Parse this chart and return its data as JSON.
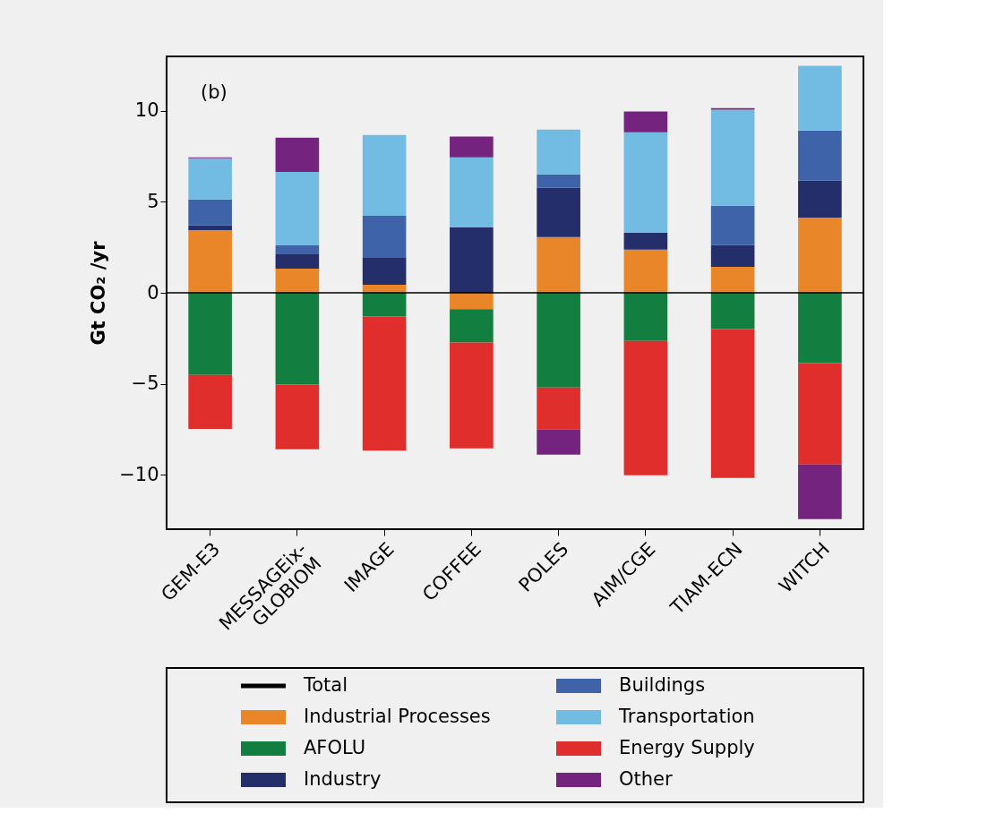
{
  "chart_data": {
    "type": "bar",
    "stacked": true,
    "ylabel": "Gt CO₂ /yr",
    "categories": [
      "GEM-E3",
      "MESSAGEix-GLOBIOM",
      "IMAGE",
      "COFFEE",
      "POLES",
      "AIM/CGE",
      "TIAM-ECN",
      "WITCH"
    ],
    "series": [
      {
        "name": "Industrial Processes",
        "color": "#e9862a",
        "values": [
          3.45,
          1.33,
          0.44,
          -0.9,
          3.06,
          2.37,
          1.43,
          4.14
        ]
      },
      {
        "name": "AFOLU",
        "color": "#127f40",
        "values": [
          -4.52,
          -5.05,
          -1.3,
          -1.83,
          -5.21,
          -2.65,
          -1.99,
          -3.87
        ]
      },
      {
        "name": "Industry",
        "color": "#232e6b",
        "values": [
          0.25,
          0.79,
          1.48,
          3.6,
          2.71,
          0.94,
          1.19,
          2.03
        ]
      },
      {
        "name": "Buildings",
        "color": "#3e63a9",
        "values": [
          1.43,
          0.49,
          2.32,
          0,
          0.74,
          0,
          2.17,
          2.76
        ]
      },
      {
        "name": "Transportation",
        "color": "#72bce4",
        "values": [
          2.27,
          4.04,
          4.44,
          3.85,
          2.47,
          5.52,
          5.28,
          3.55
        ]
      },
      {
        "name": "Energy Supply",
        "color": "#e02e2c",
        "values": [
          -2.96,
          -3.55,
          -7.38,
          -5.82,
          -2.31,
          -7.38,
          -8.19,
          -5.57
        ]
      },
      {
        "name": "Other",
        "color": "#74247f",
        "values": [
          0.05,
          1.88,
          0,
          1.14,
          -1.38,
          1.14,
          0.09,
          -3.01
        ]
      }
    ],
    "ylim": [
      -13,
      13
    ],
    "yticks": [
      -10,
      -5,
      0,
      5,
      10
    ],
    "grid": false,
    "ref_lines": [
      {
        "axis": "y",
        "value": 0,
        "label": "Total",
        "color": "#000000"
      }
    ],
    "annotations": [
      "(b)"
    ],
    "legend": "bottom"
  }
}
